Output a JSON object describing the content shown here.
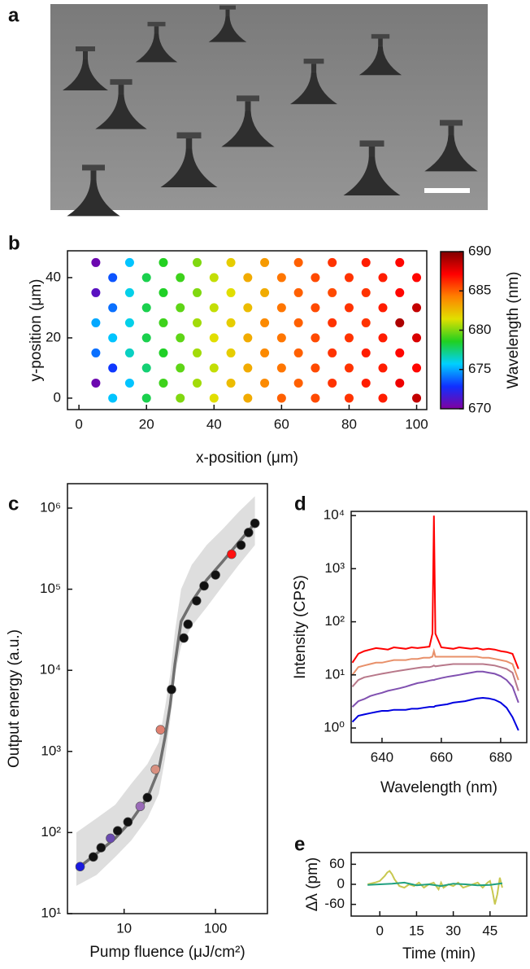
{
  "chart_data": [
    {
      "type": "image",
      "panel_label": "a"
    },
    {
      "type": "scatter",
      "panel_label": "b",
      "xlabel": "x-position (μm)",
      "ylabel": "y-position (μm)",
      "clabel": "Wavelength (nm)",
      "xlim": [
        -3.4,
        103
      ],
      "ylim": [
        -3.8,
        48.9
      ],
      "xticks": [
        0,
        20,
        40,
        60,
        80,
        100
      ],
      "yticks": [
        0,
        20,
        40
      ],
      "clim": [
        670,
        690
      ],
      "cticks": [
        670,
        675,
        680,
        685,
        690
      ],
      "colormap": [
        "#80009f",
        "#1030ff",
        "#00d0ff",
        "#20d020",
        "#e0e000",
        "#ff8000",
        "#ff0000",
        "#800000"
      ],
      "x": [
        5,
        15,
        25,
        35,
        45,
        55,
        65,
        75,
        85,
        95,
        10,
        20,
        30,
        40,
        50,
        60,
        70,
        80,
        90,
        100,
        5,
        15,
        25,
        35,
        45,
        55,
        65,
        75,
        85,
        95,
        10,
        20,
        30,
        40,
        50,
        60,
        70,
        80,
        90,
        100,
        5,
        15,
        25,
        35,
        45,
        55,
        65,
        75,
        85,
        95,
        10,
        20,
        30,
        40,
        50,
        60,
        70,
        80,
        90,
        100,
        5,
        15,
        25,
        35,
        45,
        55,
        65,
        75,
        85,
        95,
        10,
        20,
        30,
        40,
        50,
        60,
        70,
        80,
        90,
        100,
        5,
        15,
        25,
        35,
        45,
        55,
        65,
        75,
        85,
        95,
        10,
        20,
        30,
        40,
        50,
        60,
        70,
        80,
        90,
        100
      ],
      "y": [
        45,
        45,
        45,
        45,
        45,
        45,
        45,
        45,
        45,
        45,
        40,
        40,
        40,
        40,
        40,
        40,
        40,
        40,
        40,
        40,
        35,
        35,
        35,
        35,
        35,
        35,
        35,
        35,
        35,
        35,
        30,
        30,
        30,
        30,
        30,
        30,
        30,
        30,
        30,
        30,
        25,
        25,
        25,
        25,
        25,
        25,
        25,
        25,
        25,
        25,
        20,
        20,
        20,
        20,
        20,
        20,
        20,
        20,
        20,
        20,
        15,
        15,
        15,
        15,
        15,
        15,
        15,
        15,
        15,
        15,
        10,
        10,
        10,
        10,
        10,
        10,
        10,
        10,
        10,
        10,
        5,
        5,
        5,
        5,
        5,
        5,
        5,
        5,
        5,
        5,
        0,
        0,
        0,
        0,
        0,
        0,
        0,
        0,
        0,
        0
      ],
      "values": [
        670.5,
        675.5,
        678.6,
        680,
        682,
        683.5,
        685,
        686,
        686.5,
        687,
        673.5,
        678,
        679,
        681,
        683,
        684.5,
        685.5,
        686,
        686.5,
        687,
        671,
        676,
        678.5,
        680,
        681.5,
        683,
        685,
        685.5,
        686,
        687,
        674,
        678,
        679.5,
        681,
        682.5,
        684.5,
        685.5,
        686,
        686.5,
        688.5,
        675,
        676,
        679,
        680.5,
        682,
        684,
        685,
        686,
        686,
        689,
        675.5,
        678,
        679.5,
        681.5,
        683,
        684.5,
        685.5,
        686,
        686.5,
        688,
        674,
        676.5,
        678.5,
        680.5,
        682,
        684,
        685,
        686,
        686.5,
        687,
        673,
        677.5,
        679.5,
        681,
        683,
        684.5,
        685.5,
        686,
        686.5,
        687,
        670.5,
        675.5,
        679,
        680.5,
        682.5,
        684,
        685,
        686,
        686.5,
        687.5,
        675.5,
        678,
        680,
        681.5,
        683,
        685,
        685.5,
        686,
        686.5,
        688.5
      ]
    },
    {
      "type": "scatter",
      "panel_label": "c",
      "xlabel": "Pump fluence (μJ/cm²)",
      "ylabel": "Output energy (a.u.)",
      "xscale": "log",
      "yscale": "log",
      "xlim": [
        2.4,
        370
      ],
      "ylim": [
        10,
        2000000
      ],
      "xticks": [
        10,
        100
      ],
      "yticks": [
        {
          "value": 10,
          "label": "10¹"
        },
        {
          "value": 100,
          "label": "10²"
        },
        {
          "value": 1000,
          "label": "10³"
        },
        {
          "value": 10000,
          "label": "10⁴"
        },
        {
          "value": 100000,
          "label": "10⁵"
        },
        {
          "value": 1000000,
          "label": "10⁶"
        }
      ],
      "x": [
        3.3,
        4.6,
        5.6,
        7.1,
        8.5,
        11,
        15,
        18,
        22,
        25,
        33,
        45,
        50,
        62,
        75,
        100,
        150,
        190,
        230,
        270
      ],
      "values": [
        38,
        50,
        65,
        85,
        105,
        135,
        210,
        270,
        600,
        1850,
        5800,
        25000,
        37000,
        72000,
        110000,
        150000,
        270000,
        350000,
        500000,
        650000
      ],
      "colors": [
        "#1a1adf",
        "#111111",
        "#111111",
        "#6a4ab0",
        "#111111",
        "#111111",
        "#9a6ab8",
        "#111111",
        "#d89080",
        "#e08070",
        "#111111",
        "#111111",
        "#111111",
        "#111111",
        "#111111",
        "#111111",
        "#ff1010",
        "#111111",
        "#111111",
        "#111111"
      ],
      "fit": {
        "color": "#707070",
        "x": [
          3,
          5,
          8,
          12,
          18,
          24,
          28,
          32,
          36,
          42,
          55,
          80,
          120,
          180,
          270
        ],
        "values": [
          35,
          55,
          85,
          140,
          270,
          600,
          1500,
          3800,
          12000,
          40000,
          70000,
          130000,
          220000,
          380000,
          650000
        ]
      },
      "band": {
        "color": "#dedede",
        "x": [
          3,
          5,
          8,
          12,
          18,
          24,
          28,
          32,
          36,
          42,
          55,
          80,
          120,
          180,
          270
        ],
        "lower": [
          22,
          30,
          50,
          80,
          150,
          300,
          800,
          2500,
          9000,
          20000,
          35000,
          60000,
          110000,
          200000,
          350000
        ],
        "upper": [
          100,
          150,
          220,
          400,
          700,
          1300,
          3500,
          9000,
          30000,
          100000,
          200000,
          350000,
          550000,
          900000,
          1400000
        ]
      }
    },
    {
      "type": "line",
      "panel_label": "d",
      "xlabel": "Wavelength (nm)",
      "ylabel": "Intensity (CPS)",
      "yscale": "log",
      "xlim": [
        629.6,
        688.8
      ],
      "ylim": [
        0.53,
        12000
      ],
      "xticks": [
        640,
        660,
        680
      ],
      "yticks": [
        {
          "value": 1,
          "label": "10⁰"
        },
        {
          "value": 10,
          "label": "10¹"
        },
        {
          "value": 100,
          "label": "10²"
        },
        {
          "value": 1000,
          "label": "10³"
        },
        {
          "value": 10000,
          "label": "10⁴"
        }
      ],
      "x": [
        630,
        632,
        634,
        636,
        638,
        640,
        642,
        644,
        646,
        648,
        650,
        652,
        654,
        656,
        657,
        657.5,
        658,
        660,
        662,
        664,
        666,
        668,
        670,
        672,
        674,
        676,
        678,
        680,
        682,
        684,
        686
      ],
      "series": [
        {
          "color": "#0000e0",
          "values": [
            1.3,
            1.7,
            1.8,
            1.9,
            2,
            2.1,
            2.1,
            2.2,
            2.2,
            2.2,
            2.3,
            2.3,
            2.4,
            2.5,
            2.5,
            2.5,
            2.6,
            2.7,
            2.8,
            3,
            3.1,
            3.2,
            3.4,
            3.6,
            3.7,
            3.6,
            3.4,
            3,
            2.4,
            1.6,
            0.9
          ]
        },
        {
          "color": "#8050b0",
          "values": [
            2.5,
            3.2,
            3.5,
            4,
            4.3,
            4.6,
            5,
            5.3,
            5.6,
            6,
            6.5,
            7,
            7.3,
            7.8,
            8,
            8,
            8.2,
            8.7,
            9.2,
            9.6,
            10,
            10.5,
            11,
            11.5,
            11.5,
            11,
            10.5,
            9.5,
            8,
            6,
            3
          ]
        },
        {
          "color": "#b8788a",
          "values": [
            6,
            8,
            9,
            9.5,
            10,
            10.5,
            11,
            11.5,
            12,
            12.5,
            13,
            13.5,
            14,
            14,
            14.5,
            15,
            14.5,
            15,
            15.5,
            16,
            16,
            16,
            16,
            16,
            16,
            15.5,
            15,
            14,
            13,
            11,
            5
          ]
        },
        {
          "color": "#e8906a",
          "values": [
            10,
            14,
            15,
            16,
            17,
            17,
            18,
            19,
            19,
            19,
            20,
            20,
            21,
            21,
            22,
            28,
            22,
            22,
            22,
            22,
            22,
            22,
            22,
            22,
            21,
            21,
            20,
            19,
            18,
            16,
            8
          ]
        },
        {
          "color": "#ff0000",
          "values": [
            17,
            25,
            28,
            30,
            32,
            31,
            30,
            33,
            32,
            31,
            33,
            32,
            33,
            34,
            60,
            10000,
            60,
            33,
            32,
            31,
            33,
            32,
            31,
            32,
            30,
            31,
            30,
            28,
            27,
            25,
            13
          ]
        }
      ]
    },
    {
      "type": "line",
      "panel_label": "e",
      "xlabel": "Time (min)",
      "ylabel": "Δλ (pm)",
      "xlim": [
        -11.7,
        60
      ],
      "ylim": [
        -95,
        95
      ],
      "xticks": [
        0,
        15,
        30,
        45
      ],
      "yticks": [
        -60,
        0,
        60
      ],
      "series": [
        {
          "color": "#c8c850",
          "x": [
            -5,
            -2,
            0,
            2,
            3,
            4,
            5,
            6,
            7,
            8,
            10,
            12,
            14,
            16,
            18,
            20,
            22,
            24,
            25,
            26,
            28,
            30,
            32,
            34,
            36,
            38,
            40,
            42,
            44,
            45,
            46,
            47,
            48,
            49,
            50
          ],
          "values": [
            0,
            5,
            10,
            25,
            35,
            40,
            30,
            15,
            5,
            -5,
            -10,
            0,
            -5,
            5,
            -10,
            0,
            5,
            -15,
            5,
            -10,
            0,
            -5,
            5,
            -10,
            -5,
            0,
            5,
            -10,
            5,
            10,
            -20,
            -60,
            -30,
            20,
            -10
          ]
        },
        {
          "color": "#20a080",
          "x": [
            -5,
            0,
            5,
            10,
            15,
            20,
            25,
            30,
            35,
            40,
            45,
            50
          ],
          "values": [
            -2,
            0,
            2,
            5,
            -3,
            0,
            -5,
            2,
            0,
            -3,
            -2,
            3
          ]
        }
      ]
    }
  ]
}
